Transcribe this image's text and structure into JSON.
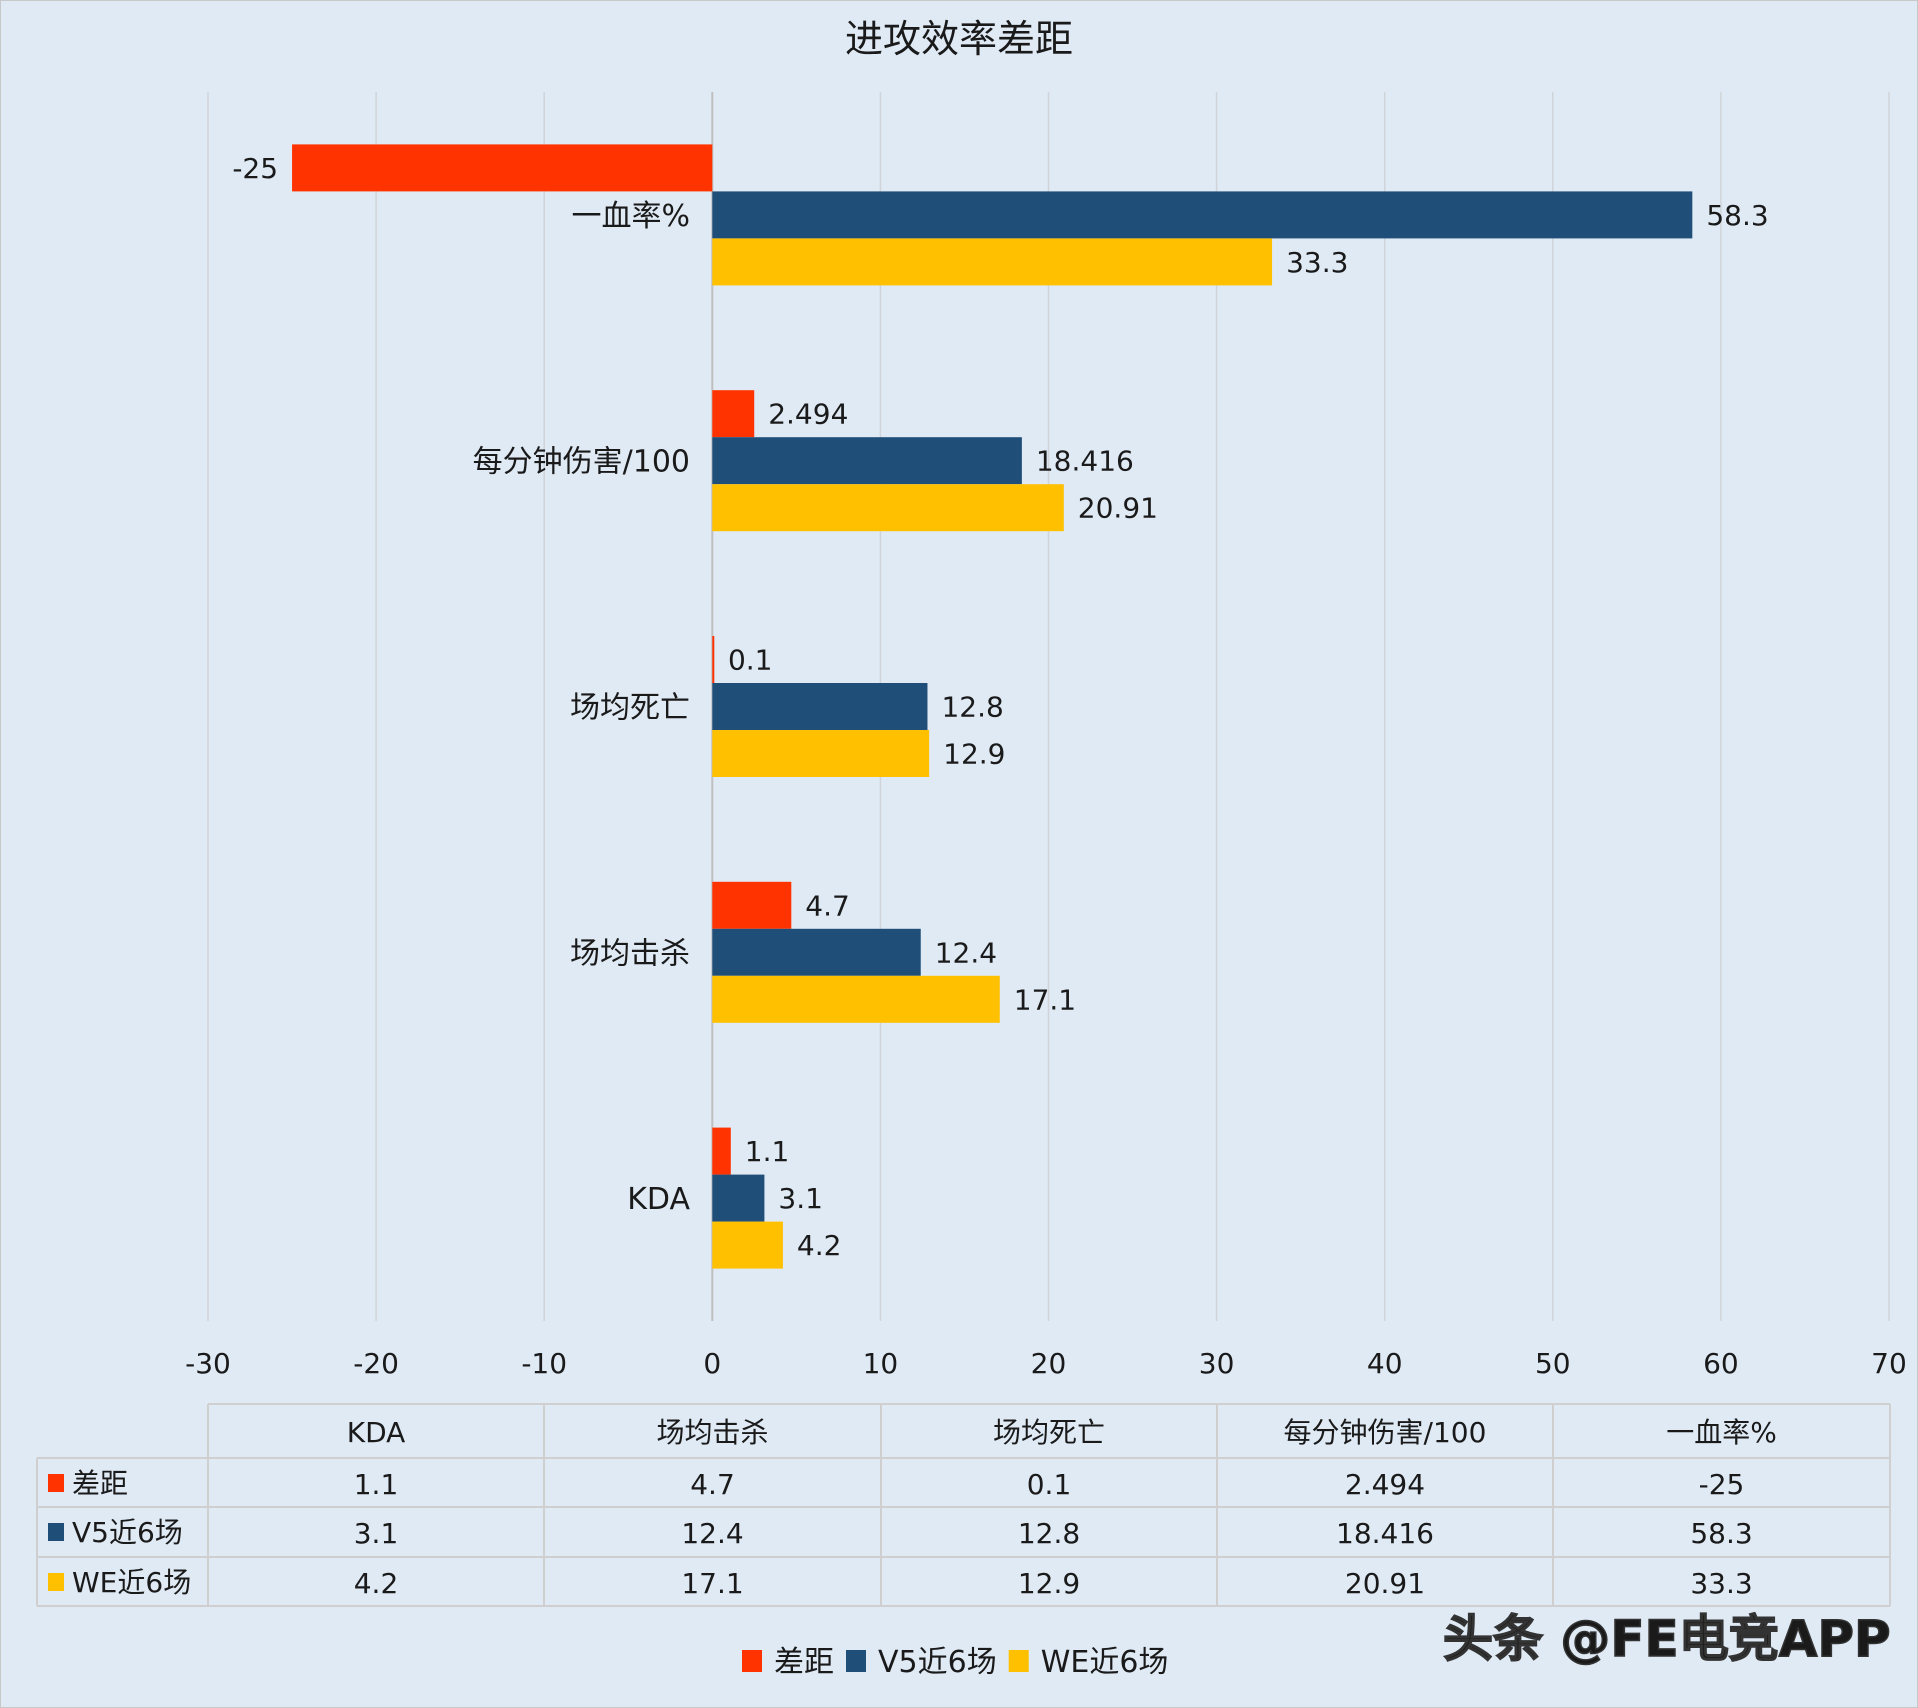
{
  "chart_data": {
    "type": "bar",
    "orientation": "horizontal",
    "title": "进攻效率差距",
    "categories": [
      "KDA",
      "场均击杀",
      "场均死亡",
      "每分钟伤害/100",
      "一血率%"
    ],
    "series": [
      {
        "name": "差距",
        "color": "#ff3300",
        "values": [
          1.1,
          4.7,
          0.1,
          2.494,
          -25
        ]
      },
      {
        "name": "V5近6场",
        "color": "#1f4e79",
        "values": [
          3.1,
          12.4,
          12.8,
          18.416,
          58.3
        ]
      },
      {
        "name": "WE近6场",
        "color": "#ffc000",
        "values": [
          4.2,
          17.1,
          12.9,
          20.91,
          33.3
        ]
      }
    ],
    "xlim": [
      -30,
      70
    ],
    "xticks": [
      -30,
      -20,
      -10,
      0,
      10,
      20,
      30,
      40,
      50,
      60,
      70
    ],
    "grid": true,
    "data_table": true,
    "legend": "bottom"
  },
  "watermark": "头条 @FE电竞APP"
}
